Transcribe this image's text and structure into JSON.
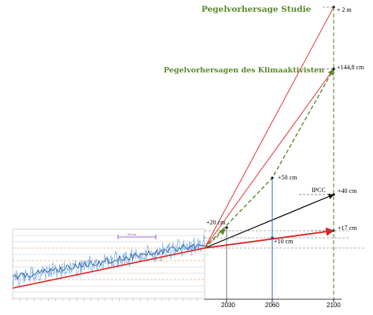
{
  "chart_data": {
    "type": "line",
    "title": "",
    "xlabel": "",
    "ylabel": "",
    "x_ticks": [
      "2030",
      "2060",
      "2100"
    ],
    "annotations": {
      "studie": "Pegelvorhersage Studie",
      "aktivisten": "Pegelvorhersagen des Klimaaktivisten",
      "ipcc": "IPCC",
      "inset_label": "20 cm"
    },
    "end_labels": {
      "two_m": "+ 2 m",
      "cm144": "+144,8 cm",
      "cm50": "+50 cm",
      "cm40": "+40 cm",
      "cm20": "+20 cm",
      "cm17": "+17 cm",
      "cm10": "+10 cm"
    },
    "projections": [
      {
        "from_year": 2015,
        "to_year": 2100,
        "end_cm": 200,
        "style": "red-thin"
      },
      {
        "from_year": 2015,
        "to_year": 2100,
        "end_cm": 144.8,
        "style": "red-thin"
      },
      {
        "from_year": 2015,
        "to_year": 2100,
        "end_cm": 144.8,
        "style": "green-dashed"
      },
      {
        "from_year": 2015,
        "to_year": 2100,
        "end_cm": 40,
        "style": "black-arrow"
      },
      {
        "from_year": 2015,
        "to_year": 2100,
        "end_cm": 17,
        "style": "red-thick"
      }
    ],
    "markers": [
      {
        "year": 2030,
        "cm": 20
      },
      {
        "year": 2060,
        "cm": 50
      },
      {
        "year": 2060,
        "cm": 10
      },
      {
        "year": 2100,
        "cm": 200
      },
      {
        "year": 2100,
        "cm": 144.8
      },
      {
        "year": 2100,
        "cm": 40
      },
      {
        "year": 2100,
        "cm": 17
      }
    ],
    "history": {
      "from_year": 1880,
      "to_year": 2015,
      "trend_start_cm": -23,
      "trend_end_cm": 0
    },
    "colors": {
      "history": "#3a7bc8",
      "trend": "#e02020",
      "green": "#5a8a2b",
      "inset": "#8b3fbf"
    }
  }
}
